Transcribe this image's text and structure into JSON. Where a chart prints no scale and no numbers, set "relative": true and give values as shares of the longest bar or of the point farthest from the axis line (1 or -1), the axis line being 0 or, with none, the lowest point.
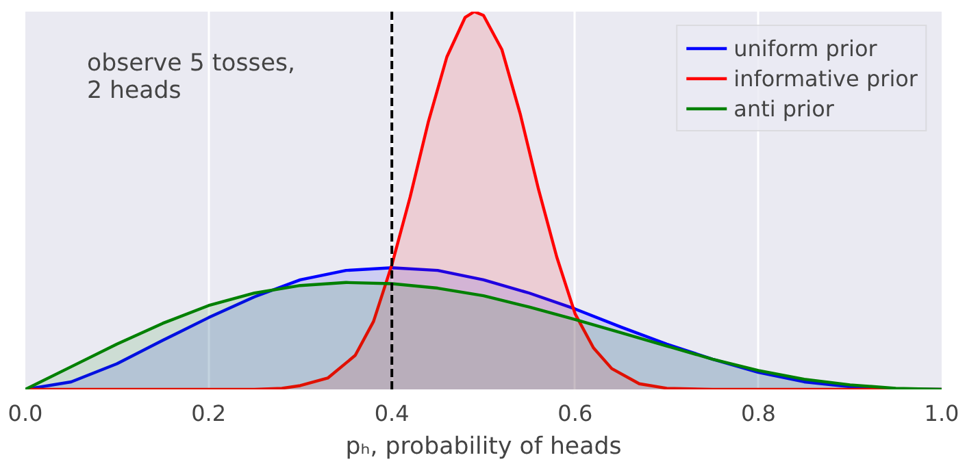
{
  "chart_data": {
    "type": "area",
    "relative": true,
    "xlabel": "pₕ, probability of heads",
    "xlim": [
      0,
      1
    ],
    "xticks": [
      {
        "value": 0,
        "label": "0.0"
      },
      0.2,
      0.4,
      0.6,
      0.8,
      {
        "value": 1,
        "label": "1.0"
      }
    ],
    "grid": "x",
    "legend": "top right",
    "annotations": [
      "observe 5 tosses,\n 2 heads"
    ],
    "ref_lines": [
      {
        "axis": "x",
        "value": 0.4,
        "label": null,
        "color": "#000000",
        "line_style": "dashed"
      }
    ],
    "series": [
      {
        "name": "uniform prior",
        "color": "#0000ff",
        "x": [
          0,
          0.05,
          0.1,
          0.15,
          0.2,
          0.25,
          0.3,
          0.35,
          0.4,
          0.45,
          0.5,
          0.55,
          0.6,
          0.65,
          0.7,
          0.75,
          0.8,
          0.85,
          0.9,
          0.95,
          1
        ],
        "values": [
          0,
          0.02,
          0.068,
          0.13,
          0.19,
          0.245,
          0.29,
          0.315,
          0.322,
          0.315,
          0.29,
          0.255,
          0.213,
          0.165,
          0.12,
          0.08,
          0.045,
          0.02,
          0.007,
          0.001,
          0
        ]
      },
      {
        "name": "informative prior",
        "color": "#ff0000",
        "x": [
          0,
          0.25,
          0.28,
          0.3,
          0.33,
          0.36,
          0.38,
          0.4,
          0.42,
          0.44,
          0.46,
          0.48,
          0.49,
          0.5,
          0.52,
          0.54,
          0.56,
          0.58,
          0.6,
          0.62,
          0.64,
          0.67,
          0.7,
          0.75,
          1
        ],
        "values": [
          0,
          0,
          0.003,
          0.01,
          0.03,
          0.09,
          0.18,
          0.33,
          0.51,
          0.71,
          0.88,
          0.985,
          1,
          0.99,
          0.9,
          0.73,
          0.53,
          0.35,
          0.2,
          0.11,
          0.055,
          0.015,
          0.003,
          0,
          0
        ]
      },
      {
        "name": "anti prior",
        "color": "#008000",
        "x": [
          0,
          0.05,
          0.1,
          0.15,
          0.2,
          0.25,
          0.3,
          0.35,
          0.4,
          0.45,
          0.5,
          0.55,
          0.6,
          0.65,
          0.7,
          0.75,
          0.8,
          0.85,
          0.9,
          0.95,
          1
        ],
        "values": [
          0,
          0.06,
          0.12,
          0.175,
          0.222,
          0.255,
          0.275,
          0.283,
          0.28,
          0.268,
          0.248,
          0.218,
          0.185,
          0.15,
          0.115,
          0.08,
          0.05,
          0.027,
          0.012,
          0.003,
          0
        ]
      }
    ]
  }
}
